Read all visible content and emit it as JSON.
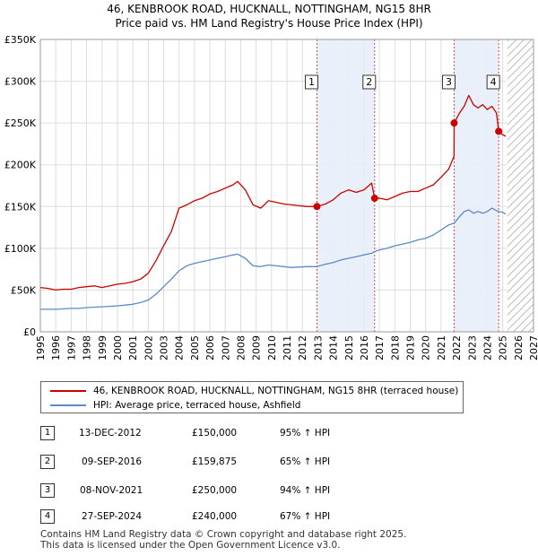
{
  "chart_data": {
    "type": "line",
    "title": "46, KENBROOK ROAD, HUCKNALL, NOTTINGHAM, NG15 8HR",
    "subtitle": "Price paid vs. HM Land Registry's House Price Index (HPI)",
    "xlim": [
      1995,
      2027
    ],
    "ylim": [
      0,
      350000
    ],
    "x_ticks": [
      "1995",
      "1996",
      "1997",
      "1998",
      "1999",
      "2000",
      "2001",
      "2002",
      "2003",
      "2004",
      "2005",
      "2006",
      "2007",
      "2008",
      "2009",
      "2010",
      "2011",
      "2012",
      "2013",
      "2014",
      "2015",
      "2016",
      "2017",
      "2018",
      "2019",
      "2020",
      "2021",
      "2022",
      "2023",
      "2024",
      "2025",
      "2026",
      "2027"
    ],
    "y_ticks": [
      {
        "value": 0,
        "label": "£0"
      },
      {
        "value": 50000,
        "label": "£50K"
      },
      {
        "value": 100000,
        "label": "£100K"
      },
      {
        "value": 150000,
        "label": "£150K"
      },
      {
        "value": 200000,
        "label": "£200K"
      },
      {
        "value": 250000,
        "label": "£250K"
      },
      {
        "value": 300000,
        "label": "£300K"
      },
      {
        "value": 350000,
        "label": "£350K"
      }
    ],
    "grid": true,
    "shaded_ranges": [
      [
        2012.95,
        2016.69
      ],
      [
        2021.85,
        2024.74
      ]
    ],
    "future_hatch_from": 2025.3,
    "series": [
      {
        "name": "46, KENBROOK ROAD, HUCKNALL, NOTTINGHAM, NG15 8HR (terraced house)",
        "color": "#cc0000",
        "x": [
          1995,
          1995.5,
          1996,
          1996.5,
          1997,
          1997.5,
          1998,
          1998.5,
          1999,
          1999.5,
          2000,
          2000.5,
          2001,
          2001.5,
          2002,
          2002.5,
          2003,
          2003.5,
          2004,
          2004.5,
          2005,
          2005.5,
          2006,
          2006.5,
          2007,
          2007.5,
          2007.8,
          2008.3,
          2008.8,
          2009.3,
          2009.8,
          2010.3,
          2010.8,
          2011.3,
          2011.8,
          2012.3,
          2012.95,
          2013.5,
          2014,
          2014.5,
          2015,
          2015.5,
          2016,
          2016.5,
          2016.69,
          2017,
          2017.5,
          2018,
          2018.5,
          2019,
          2019.5,
          2020,
          2020.5,
          2021,
          2021.5,
          2021.84,
          2021.85,
          2022.2,
          2022.5,
          2022.8,
          2023.1,
          2023.4,
          2023.7,
          2024,
          2024.3,
          2024.6,
          2024.74,
          2025.0,
          2025.2
        ],
        "y": [
          53000,
          52000,
          50000,
          51000,
          51000,
          53000,
          54000,
          55000,
          53000,
          55000,
          57000,
          58000,
          60000,
          63000,
          70000,
          85000,
          103000,
          120000,
          148000,
          152000,
          157000,
          160000,
          165000,
          168000,
          172000,
          176000,
          180000,
          170000,
          152000,
          148000,
          157000,
          155000,
          153000,
          152000,
          151000,
          150000,
          150000,
          153000,
          158000,
          166000,
          170000,
          167000,
          170000,
          178000,
          159875,
          160000,
          158000,
          162000,
          166000,
          168000,
          168000,
          172000,
          176000,
          185000,
          195000,
          210000,
          250000,
          262000,
          270000,
          283000,
          272000,
          268000,
          272000,
          266000,
          270000,
          262000,
          240000,
          236000,
          234000
        ]
      },
      {
        "name": "HPI: Average price, terraced house, Ashfield",
        "color": "#5b8ac6",
        "x": [
          1995,
          1995.5,
          1996,
          1996.5,
          1997,
          1997.5,
          1998,
          1998.5,
          1999,
          1999.5,
          2000,
          2000.5,
          2001,
          2001.5,
          2002,
          2002.5,
          2003,
          2003.5,
          2004,
          2004.5,
          2005,
          2005.5,
          2006,
          2006.5,
          2007,
          2007.5,
          2007.8,
          2008.3,
          2008.8,
          2009.3,
          2009.8,
          2010.3,
          2010.8,
          2011.3,
          2011.8,
          2012.3,
          2012.95,
          2013.5,
          2014,
          2014.5,
          2015,
          2015.5,
          2016,
          2016.5,
          2016.69,
          2017,
          2017.5,
          2018,
          2018.5,
          2019,
          2019.5,
          2020,
          2020.5,
          2021,
          2021.5,
          2021.85,
          2022.2,
          2022.5,
          2022.8,
          2023.1,
          2023.4,
          2023.7,
          2024,
          2024.3,
          2024.6,
          2024.74,
          2025.0,
          2025.2
        ],
        "y": [
          27000,
          27000,
          27000,
          27500,
          28000,
          28000,
          29000,
          29500,
          30000,
          30500,
          31000,
          32000,
          33000,
          35000,
          38000,
          45000,
          54000,
          63000,
          73000,
          79000,
          82000,
          84000,
          86000,
          88000,
          90000,
          92000,
          93000,
          88000,
          79000,
          78000,
          80000,
          79000,
          78000,
          77000,
          77500,
          78000,
          78000,
          81000,
          83000,
          86000,
          88000,
          90000,
          92000,
          94000,
          96000,
          98000,
          100000,
          103000,
          105000,
          107000,
          110000,
          112000,
          116000,
          122000,
          128000,
          130000,
          138000,
          144000,
          146000,
          142000,
          144000,
          142000,
          144000,
          148000,
          145000,
          144000,
          143000,
          141000
        ]
      }
    ],
    "markers": [
      {
        "label": "1",
        "x": 2012.95,
        "y": 150000
      },
      {
        "label": "2",
        "x": 2016.69,
        "y": 159875
      },
      {
        "label": "3",
        "x": 2021.85,
        "y": 250000
      },
      {
        "label": "4",
        "x": 2024.74,
        "y": 240000
      }
    ]
  },
  "legend": {
    "red_label": "46, KENBROOK ROAD, HUCKNALL, NOTTINGHAM, NG15 8HR (terraced house)",
    "blue_label": "HPI: Average price, terraced house, Ashfield"
  },
  "transactions": [
    {
      "num": "1",
      "date": "13-DEC-2012",
      "price": "£150,000",
      "hpi": "95% ↑ HPI"
    },
    {
      "num": "2",
      "date": "09-SEP-2016",
      "price": "£159,875",
      "hpi": "65% ↑ HPI"
    },
    {
      "num": "3",
      "date": "08-NOV-2021",
      "price": "£250,000",
      "hpi": "94% ↑ HPI"
    },
    {
      "num": "4",
      "date": "27-SEP-2024",
      "price": "£240,000",
      "hpi": "67% ↑ HPI"
    }
  ],
  "footer": {
    "line1": "Contains HM Land Registry data © Crown copyright and database right 2025.",
    "line2": "This data is licensed under the Open Government Licence v3.0."
  }
}
